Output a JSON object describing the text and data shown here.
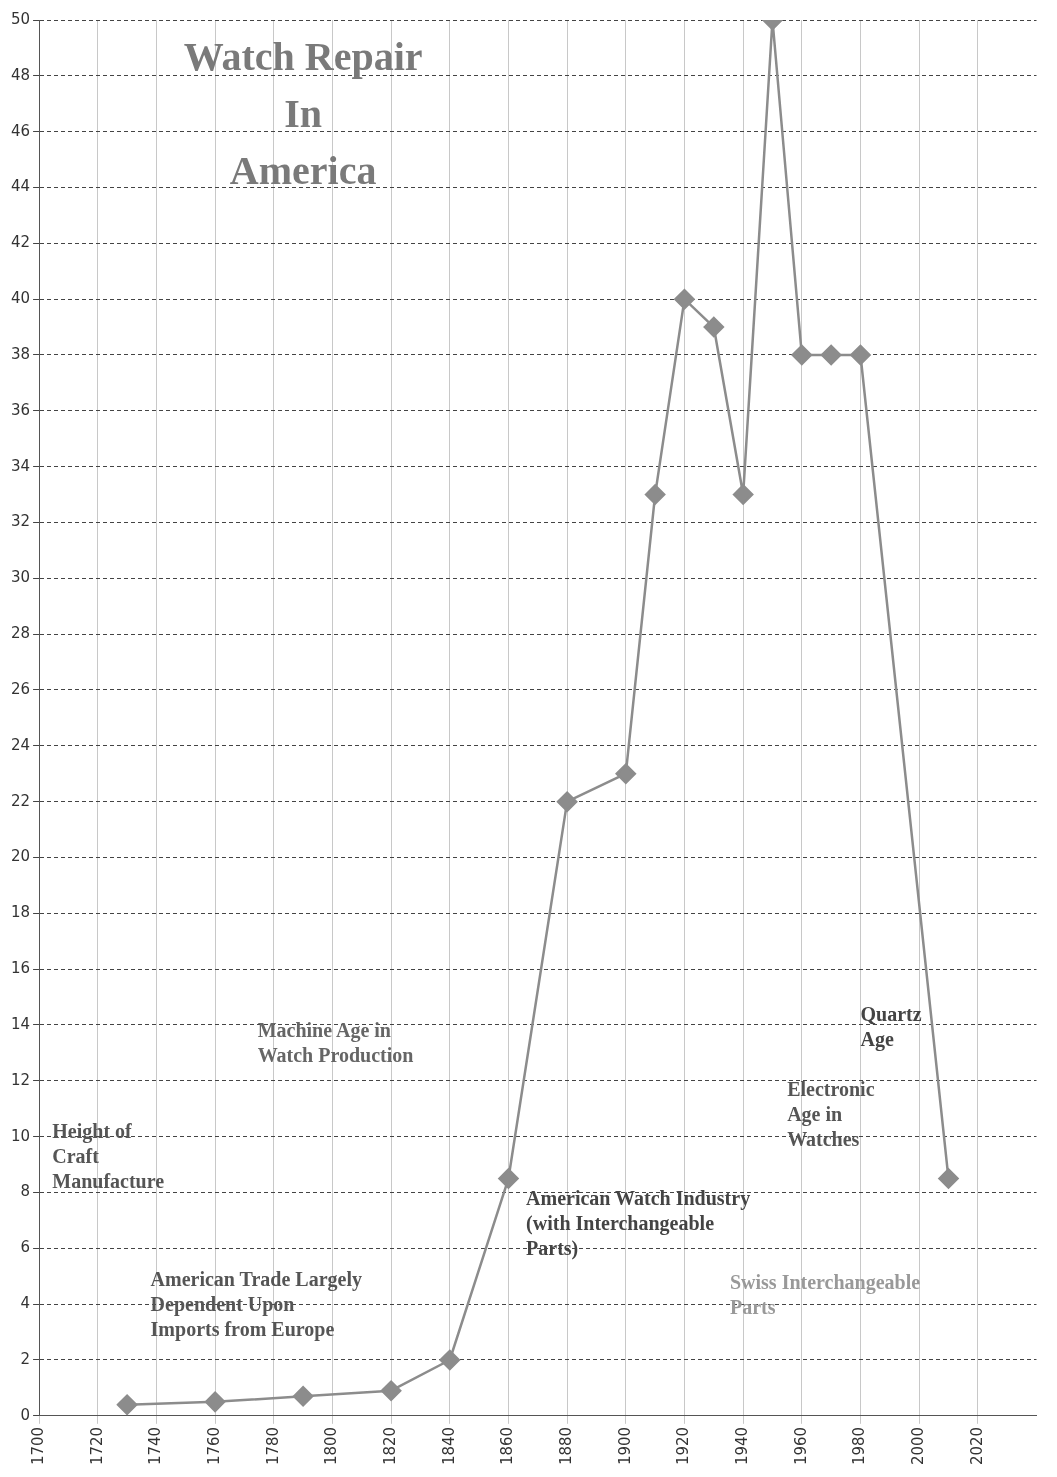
{
  "chart_data": {
    "type": "line",
    "title": "Watch Repair\nIn\nAmerica",
    "x": [
      1730,
      1760,
      1790,
      1820,
      1840,
      1860,
      1880,
      1900,
      1910,
      1920,
      1930,
      1940,
      1950,
      1960,
      1970,
      1980,
      2010
    ],
    "series": [
      {
        "color": "#8c8c8c",
        "values": [
          0.4,
          0.5,
          0.7,
          0.9,
          2,
          8.5,
          22,
          23,
          33,
          40,
          39,
          33,
          50,
          38,
          38,
          38,
          8.5
        ]
      }
    ],
    "xlim": [
      1700,
      2040
    ],
    "xticks": [
      1700,
      1720,
      1740,
      1760,
      1780,
      1800,
      1820,
      1840,
      1860,
      1880,
      1900,
      1920,
      1940,
      1960,
      1980,
      2000,
      2020
    ],
    "ylim": [
      0,
      50
    ],
    "yticks": [
      0,
      2,
      4,
      6,
      8,
      10,
      12,
      14,
      16,
      18,
      20,
      22,
      24,
      26,
      28,
      30,
      32,
      34,
      36,
      38,
      40,
      42,
      44,
      46,
      48,
      50
    ],
    "grid": true,
    "marker": "diamond",
    "line_style": "solid",
    "annotations": [
      "Height of\nCraft\nManufacture",
      "Machine Age in\nWatch Production",
      "American Trade Largely\nDependent Upon\nImports from Europe",
      "American Watch Industry\n(with Interchangeable\nParts)",
      "Swiss Interchangeable\nParts",
      "Electronic\nAge in\nWatches",
      "Quartz\nAge"
    ]
  }
}
